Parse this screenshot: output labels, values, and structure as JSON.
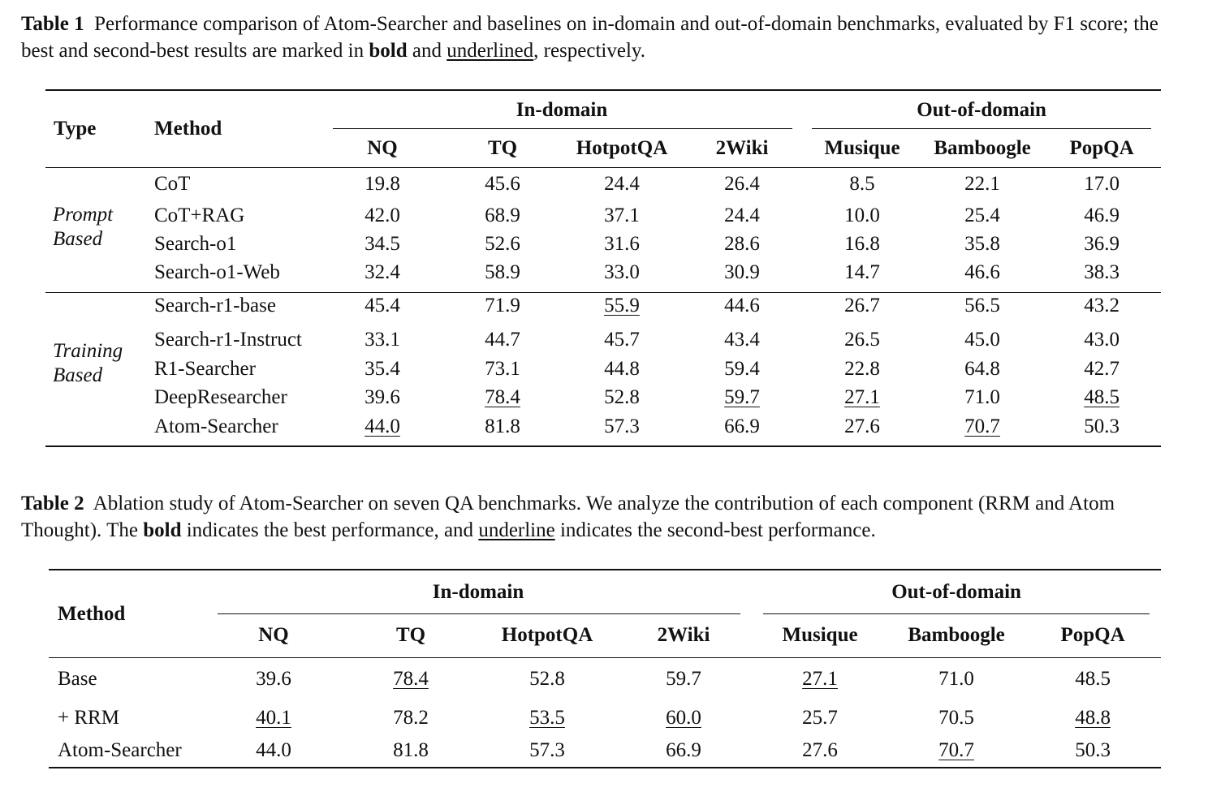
{
  "table1": {
    "caption_label": "Table 1",
    "caption_pre": "Performance comparison of Atom-Searcher and baselines on in-domain and out-of-domain benchmarks, evaluated by F1 score; the best and second-best results are marked in ",
    "caption_bold_word": "bold",
    "caption_mid": " and ",
    "caption_underline_word": "underlined",
    "caption_post": ", respectively.",
    "header": {
      "type": "Type",
      "method": "Method",
      "in_domain": "In-domain",
      "out_of_domain": "Out-of-domain",
      "columns": [
        "NQ",
        "TQ",
        "HotpotQA",
        "2Wiki",
        "Musique",
        "Bamboogle",
        "PopQA"
      ]
    },
    "groups": [
      {
        "type_line1": "Prompt",
        "type_line2": "Based",
        "rows": [
          {
            "method": "CoT",
            "values": [
              "19.8",
              "45.6",
              "24.4",
              "26.4",
              "8.5",
              "22.1",
              "17.0"
            ],
            "bold": [],
            "underline": []
          },
          {
            "method": "CoT+RAG",
            "values": [
              "42.0",
              "68.9",
              "37.1",
              "24.4",
              "10.0",
              "25.4",
              "46.9"
            ],
            "bold": [],
            "underline": []
          },
          {
            "method": "Search-o1",
            "values": [
              "34.5",
              "52.6",
              "31.6",
              "28.6",
              "16.8",
              "35.8",
              "36.9"
            ],
            "bold": [],
            "underline": []
          },
          {
            "method": "Search-o1-Web",
            "values": [
              "32.4",
              "58.9",
              "33.0",
              "30.9",
              "14.7",
              "46.6",
              "38.3"
            ],
            "bold": [],
            "underline": []
          }
        ]
      },
      {
        "type_line1": "Training",
        "type_line2": "Based",
        "rows": [
          {
            "method": "Search-r1-base",
            "values": [
              "45.4",
              "71.9",
              "55.9",
              "44.6",
              "26.7",
              "56.5",
              "43.2"
            ],
            "bold": [
              0
            ],
            "underline": [
              2
            ]
          },
          {
            "method": "Search-r1-Instruct",
            "values": [
              "33.1",
              "44.7",
              "45.7",
              "43.4",
              "26.5",
              "45.0",
              "43.0"
            ],
            "bold": [],
            "underline": []
          },
          {
            "method": "R1-Searcher",
            "values": [
              "35.4",
              "73.1",
              "44.8",
              "59.4",
              "22.8",
              "64.8",
              "42.7"
            ],
            "bold": [],
            "underline": []
          },
          {
            "method": "DeepResearcher",
            "values": [
              "39.6",
              "78.4",
              "52.8",
              "59.7",
              "27.1",
              "71.0",
              "48.5"
            ],
            "bold": [
              5
            ],
            "underline": [
              1,
              3,
              4,
              6
            ]
          },
          {
            "method": "Atom-Searcher",
            "method_bold": true,
            "values": [
              "44.0",
              "81.8",
              "57.3",
              "66.9",
              "27.6",
              "70.7",
              "50.3"
            ],
            "bold": [
              1,
              2,
              3,
              4,
              6
            ],
            "underline": [
              0,
              5
            ]
          }
        ]
      }
    ]
  },
  "table2": {
    "caption_label": "Table 2",
    "caption_pre": "Ablation study of Atom-Searcher on seven QA benchmarks. We analyze the contribution of each component (RRM and Atom Thought). The ",
    "caption_bold_word": "bold",
    "caption_mid": " indicates the best performance, and ",
    "caption_underline_word": "underline",
    "caption_post": " indicates the second-best performance.",
    "header": {
      "method": "Method",
      "in_domain": "In-domain",
      "out_of_domain": "Out-of-domain",
      "columns": [
        "NQ",
        "TQ",
        "HotpotQA",
        "2Wiki",
        "Musique",
        "Bamboogle",
        "PopQA"
      ]
    },
    "rows": [
      {
        "method": "Base",
        "values": [
          "39.6",
          "78.4",
          "52.8",
          "59.7",
          "27.1",
          "71.0",
          "48.5"
        ],
        "bold": [
          5
        ],
        "underline": [
          1,
          4
        ]
      },
      {
        "method": "+ RRM",
        "values": [
          "40.1",
          "78.2",
          "53.5",
          "60.0",
          "25.7",
          "70.5",
          "48.8"
        ],
        "bold": [],
        "underline": [
          0,
          2,
          3,
          6
        ]
      },
      {
        "method": "Atom-Searcher",
        "values": [
          "44.0",
          "81.8",
          "57.3",
          "66.9",
          "27.6",
          "70.7",
          "50.3"
        ],
        "bold": [
          0,
          1,
          2,
          3,
          4,
          6
        ],
        "underline": [
          5
        ]
      }
    ]
  }
}
